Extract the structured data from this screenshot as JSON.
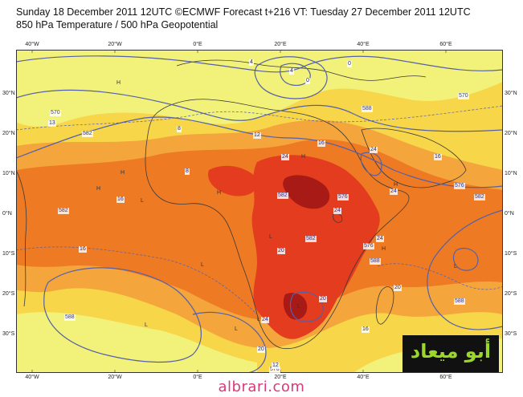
{
  "header": {
    "line1": "Sunday 18 December 2011 12UTC ©ECMWF Forecast t+216 VT: Tuesday 27 December 2011 12UTC",
    "line2": "850 hPa Temperature / 500 hPa Geopotential"
  },
  "axes": {
    "top_lon": [
      "40°W",
      "20°W",
      "0°E",
      "20°E",
      "40°E",
      "60°E"
    ],
    "bottom_lon": [
      "40°W",
      "20°W",
      "0°E",
      "20°E",
      "40°E",
      "60°E"
    ],
    "left_lat": [
      "30°N",
      "20°N",
      "10°N",
      "0°N",
      "10°S",
      "20°S",
      "30°S"
    ],
    "right_lat": [
      "30°N",
      "20°N",
      "10°N",
      "0°N",
      "10°S",
      "20°S",
      "30°S"
    ]
  },
  "contour_labels": {
    "geopotential": [
      "570",
      "582",
      "582",
      "576",
      "582",
      "576",
      "570",
      "588",
      "588",
      "588",
      "576",
      "582",
      "588",
      "582",
      "576"
    ],
    "temperature": [
      "13",
      "12",
      "16",
      "16",
      "16",
      "20",
      "20",
      "20",
      "20",
      "24",
      "24",
      "24",
      "24",
      "24",
      "24",
      "12",
      "8",
      "8",
      "4",
      "4",
      "0",
      "0",
      "16",
      "16"
    ],
    "pressure_centres": [
      "H",
      "H",
      "H",
      "H",
      "H",
      "L",
      "L",
      "L",
      "L",
      "L",
      "L",
      "L",
      "L",
      "H",
      "H"
    ]
  },
  "colors": {
    "yellow_light": "#f2f27a",
    "yellow": "#f7d64a",
    "orange_light": "#f4a53c",
    "orange": "#ee7a24",
    "red": "#e33c1e",
    "deep_red": "#a81a16",
    "contour": "#5560a8",
    "coast": "#3a3a3a"
  },
  "logo": {
    "text": "أبو ميعاد"
  },
  "credit": "albrari.com"
}
